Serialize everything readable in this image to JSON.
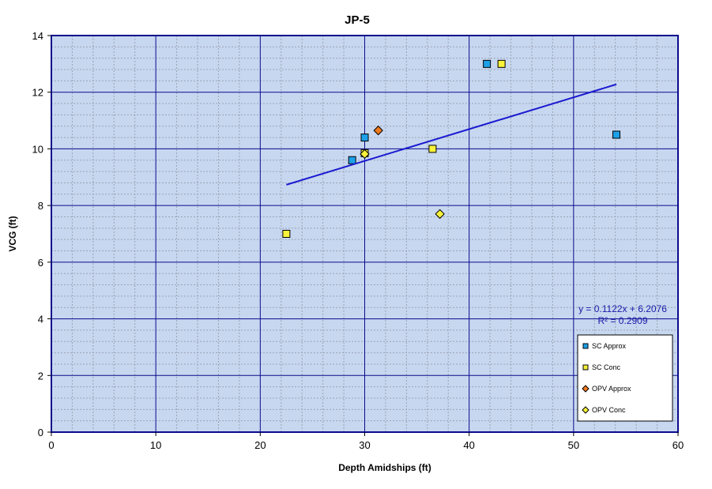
{
  "chart_data": {
    "type": "scatter",
    "title": "JP-5",
    "xlabel": "Depth Amidships  (ft)",
    "ylabel": "VCG  (ft)",
    "xlim": [
      0,
      60
    ],
    "ylim": [
      0,
      14
    ],
    "x_ticks": [
      0,
      10,
      20,
      30,
      40,
      50,
      60
    ],
    "y_ticks": [
      0,
      2,
      4,
      6,
      8,
      10,
      12,
      14
    ],
    "major_grid": true,
    "minor_grid": true,
    "plot_background": "#c7d7f0",
    "axis_color": "#0b0b8c",
    "series": [
      {
        "name": "SC Approx",
        "marker": "square",
        "color": "#1ea0e8",
        "points": [
          {
            "x": 28.8,
            "y": 9.6
          },
          {
            "x": 30.0,
            "y": 10.4
          },
          {
            "x": 41.7,
            "y": 13.0
          },
          {
            "x": 54.1,
            "y": 10.5
          }
        ]
      },
      {
        "name": "SC Conc",
        "marker": "square",
        "color": "#f7f23a",
        "points": [
          {
            "x": 22.5,
            "y": 7.0
          },
          {
            "x": 30.0,
            "y": 9.85
          },
          {
            "x": 36.5,
            "y": 10.0
          },
          {
            "x": 43.1,
            "y": 13.0
          }
        ]
      },
      {
        "name": "OPV Approx",
        "marker": "diamond",
        "color": "#f07a1e",
        "points": [
          {
            "x": 31.3,
            "y": 10.65
          }
        ]
      },
      {
        "name": "OPV Conc",
        "marker": "diamond",
        "color": "#f7f23a",
        "points": [
          {
            "x": 30.0,
            "y": 9.82
          },
          {
            "x": 37.2,
            "y": 7.7
          }
        ]
      }
    ],
    "trendline": {
      "slope": 0.1122,
      "intercept": 6.2076,
      "x_range": [
        22.5,
        54.1
      ],
      "color": "#1a1ad0",
      "equation_label": "y = 0.1122x + 6.2076",
      "r2_label": "R² = 0.2909"
    },
    "legend_position": "bottom-right"
  }
}
